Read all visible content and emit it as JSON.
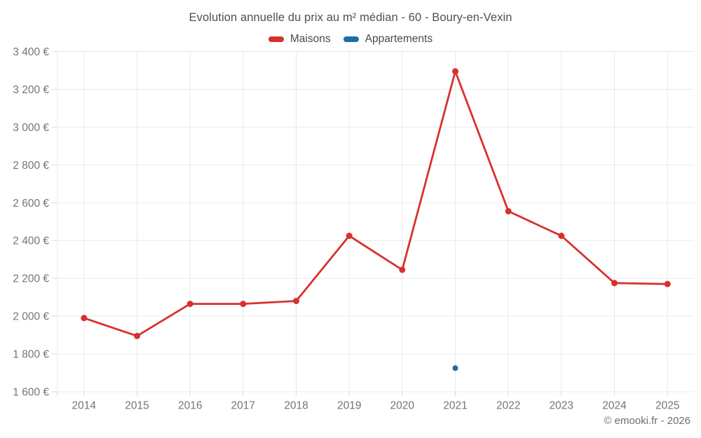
{
  "footer": {
    "credit": "© emooki.fr - 2026"
  },
  "colors": {
    "grid": "#e9e9e9",
    "tick": "#d9d9d9",
    "axis_text": "#757575",
    "title_text": "#4f4f4f",
    "accent_red": "#d7312e",
    "accent_blue": "#1c6ea4"
  },
  "chart_data": {
    "type": "line",
    "title": "Evolution annuelle du prix au m² médian - 60 - Boury-en-Vexin",
    "categories": [
      "2014",
      "2015",
      "2016",
      "2017",
      "2018",
      "2019",
      "2020",
      "2021",
      "2022",
      "2023",
      "2024",
      "2025"
    ],
    "series": [
      {
        "name": "Maisons",
        "color": "#d7312e",
        "point_radius": 4.5,
        "values": [
          1990,
          1895,
          2065,
          2065,
          2080,
          2425,
          2245,
          3295,
          2555,
          2425,
          2175,
          2170
        ]
      },
      {
        "name": "Appartements",
        "color": "#1c6ea4",
        "point_radius": 4,
        "values": [
          null,
          null,
          null,
          null,
          null,
          null,
          null,
          1725,
          null,
          null,
          null,
          null
        ]
      }
    ],
    "xlabel": "",
    "ylabel": "",
    "ylim": [
      1600,
      3400
    ],
    "ytick_step": 200,
    "y_tick_labels": [
      "1 600 €",
      "1 800 €",
      "2 000 €",
      "2 200 €",
      "2 400 €",
      "2 600 €",
      "2 800 €",
      "3 000 €",
      "3 200 €",
      "3 400 €"
    ],
    "grid": true,
    "legend_position": "top"
  }
}
